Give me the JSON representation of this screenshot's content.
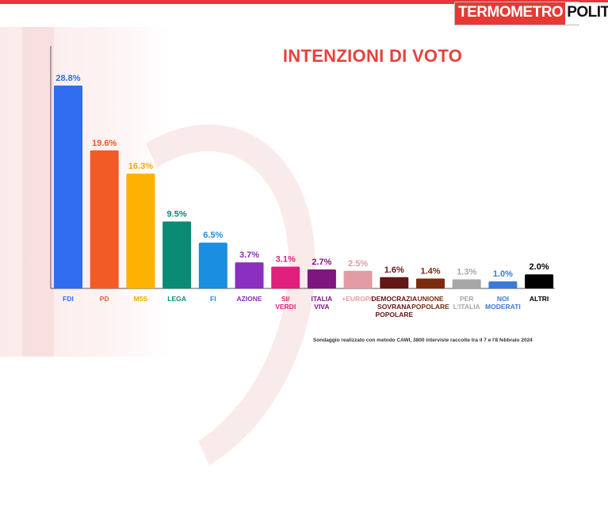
{
  "brand": {
    "logo_part1": "TERMOMETRO",
    "logo_part2": "POLITICO"
  },
  "footnote": "Sondaggio realizzato con metodo CAWI, 3800 interviste raccolte tra il 7 e l'8 febbraio 2024",
  "chart_data": {
    "type": "bar",
    "title": "INTENZIONI DI VOTO",
    "xlabel": "",
    "ylabel": "",
    "ylim": [
      0,
      30
    ],
    "grid": false,
    "categories": [
      "FDI",
      "PD",
      "M5S",
      "LEGA",
      "FI",
      "AZIONE",
      "SI/ VERDI",
      "ITALIA VIVA",
      "+EUROPA",
      "DEMOCRAZIA SOVRANA POPOLARE",
      "UNIONE POPOLARE",
      "PER L'ITALIA",
      "NOI MODERATI",
      "ALTRI"
    ],
    "values": [
      28.8,
      19.6,
      16.3,
      9.5,
      6.5,
      3.7,
      3.1,
      2.7,
      2.5,
      1.6,
      1.4,
      1.3,
      1.0,
      2.0
    ],
    "data_labels": [
      "28.8%",
      "19.6%",
      "16.3%",
      "9.5%",
      "6.5%",
      "3.7%",
      "3.1%",
      "2.7%",
      "2.5%",
      "1.6%",
      "1.4%",
      "1.3%",
      "1.0%",
      "2.0%"
    ],
    "category_lines": [
      [
        "FDI"
      ],
      [
        "PD"
      ],
      [
        "M5S"
      ],
      [
        "LEGA"
      ],
      [
        "FI"
      ],
      [
        "AZIONE"
      ],
      [
        "SI/",
        "VERDI"
      ],
      [
        "ITALIA",
        "VIVA"
      ],
      [
        "+EUROPA"
      ],
      [
        "DEMOCRAZIA",
        "SOVRANA",
        "POPOLARE"
      ],
      [
        "UNIONE",
        "POPOLARE"
      ],
      [
        "PER",
        "L'ITALIA"
      ],
      [
        "NOI",
        "MODERATI"
      ],
      [
        "ALTRI"
      ]
    ],
    "colors": [
      "#2f6cf0",
      "#f25a26",
      "#fdb201",
      "#0b8a74",
      "#1a8ee0",
      "#8a2fbf",
      "#e0207c",
      "#7d1780",
      "#e39ba3",
      "#641717",
      "#7b2b0c",
      "#a7a7a7",
      "#3b79d9",
      "#000000"
    ],
    "label_colors": [
      "#2f6cf0",
      "#f25a26",
      "#f5a800",
      "#0b8a74",
      "#1a8ee0",
      "#8a2fbf",
      "#e0207c",
      "#7d1780",
      "#e39ba3",
      "#641717",
      "#7b2b0c",
      "#a7a7a7",
      "#3b79d9",
      "#000000"
    ]
  }
}
